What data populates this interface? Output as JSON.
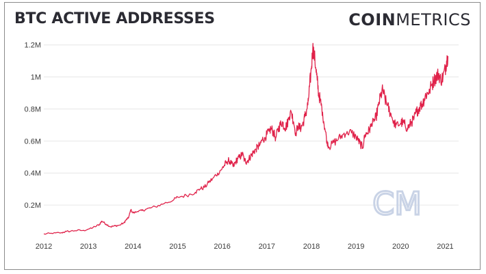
{
  "header": {
    "title": "BTC ACTIVE ADDRESSES",
    "brand_bold": "COIN",
    "brand_light": "METRICS"
  },
  "watermark": {
    "text": "CM",
    "color": "#c9d3e6"
  },
  "colors": {
    "line": "#e0224a",
    "grid": "#e6e6e6",
    "text": "#3a3a3a"
  },
  "chart_data": {
    "type": "line",
    "title": "BTC ACTIVE ADDRESSES",
    "xlabel": "",
    "ylabel": "",
    "xlim": [
      2012.0,
      2021.3
    ],
    "ylim": [
      0,
      1250000
    ],
    "grid": "horizontal",
    "x_ticks": [
      {
        "value": 2012,
        "label": "2012"
      },
      {
        "value": 2013,
        "label": "2013"
      },
      {
        "value": 2014,
        "label": "2014"
      },
      {
        "value": 2015,
        "label": "2015"
      },
      {
        "value": 2016,
        "label": "2016"
      },
      {
        "value": 2017,
        "label": "2017"
      },
      {
        "value": 2018,
        "label": "2018"
      },
      {
        "value": 2019,
        "label": "2019"
      },
      {
        "value": 2020,
        "label": "2020"
      },
      {
        "value": 2021,
        "label": "2021"
      }
    ],
    "y_ticks": [
      {
        "value": 200000,
        "label": "0.2M"
      },
      {
        "value": 400000,
        "label": "0.4M"
      },
      {
        "value": 600000,
        "label": "0.6M"
      },
      {
        "value": 800000,
        "label": "0.8M"
      },
      {
        "value": 1000000,
        "label": "1M"
      },
      {
        "value": 1200000,
        "label": "1.2M"
      }
    ],
    "series": [
      {
        "color": "#e0224a",
        "x": [
          2012.0,
          2012.2,
          2012.4,
          2012.5,
          2012.7,
          2012.9,
          2013.0,
          2013.15,
          2013.25,
          2013.3,
          2013.4,
          2013.5,
          2013.6,
          2013.7,
          2013.8,
          2013.85,
          2013.9,
          2013.95,
          2014.0,
          2014.1,
          2014.2,
          2014.3,
          2014.5,
          2014.7,
          2014.9,
          2015.0,
          2015.2,
          2015.4,
          2015.5,
          2015.6,
          2015.7,
          2015.8,
          2015.9,
          2016.0,
          2016.05,
          2016.1,
          2016.15,
          2016.2,
          2016.25,
          2016.3,
          2016.35,
          2016.4,
          2016.45,
          2016.5,
          2016.55,
          2016.6,
          2016.65,
          2016.7,
          2016.75,
          2016.8,
          2016.85,
          2016.9,
          2016.95,
          2017.0,
          2017.05,
          2017.1,
          2017.15,
          2017.2,
          2017.25,
          2017.3,
          2017.35,
          2017.4,
          2017.45,
          2017.5,
          2017.55,
          2017.6,
          2017.65,
          2017.7,
          2017.75,
          2017.8,
          2017.85,
          2017.9,
          2017.93,
          2017.96,
          2018.0,
          2018.03,
          2018.06,
          2018.1,
          2018.13,
          2018.16,
          2018.2,
          2018.25,
          2018.3,
          2018.35,
          2018.4,
          2018.5,
          2018.6,
          2018.7,
          2018.8,
          2018.9,
          2019.0,
          2019.05,
          2019.1,
          2019.15,
          2019.2,
          2019.25,
          2019.3,
          2019.35,
          2019.4,
          2019.45,
          2019.5,
          2019.55,
          2019.6,
          2019.65,
          2019.7,
          2019.75,
          2019.8,
          2019.85,
          2019.9,
          2020.0,
          2020.05,
          2020.1,
          2020.15,
          2020.2,
          2020.25,
          2020.3,
          2020.35,
          2020.4,
          2020.45,
          2020.5,
          2020.55,
          2020.6,
          2020.65,
          2020.7,
          2020.75,
          2020.8,
          2020.85,
          2020.9,
          2020.95,
          2021.0,
          2021.03,
          2021.06
        ],
        "y": [
          20000,
          22000,
          28000,
          35000,
          40000,
          42000,
          50000,
          65000,
          80000,
          100000,
          80000,
          65000,
          70000,
          75000,
          90000,
          110000,
          120000,
          170000,
          150000,
          160000,
          165000,
          175000,
          190000,
          210000,
          230000,
          250000,
          260000,
          280000,
          300000,
          310000,
          340000,
          370000,
          400000,
          430000,
          450000,
          470000,
          480000,
          460000,
          440000,
          470000,
          490000,
          500000,
          520000,
          480000,
          470000,
          490000,
          510000,
          530000,
          550000,
          560000,
          580000,
          610000,
          620000,
          640000,
          660000,
          680000,
          650000,
          620000,
          670000,
          700000,
          720000,
          680000,
          700000,
          750000,
          780000,
          720000,
          650000,
          690000,
          680000,
          700000,
          750000,
          800000,
          850000,
          950000,
          1050000,
          1180000,
          1150000,
          1050000,
          980000,
          900000,
          850000,
          780000,
          680000,
          600000,
          560000,
          590000,
          610000,
          640000,
          660000,
          650000,
          630000,
          600000,
          580000,
          560000,
          640000,
          650000,
          670000,
          700000,
          720000,
          750000,
          820000,
          880000,
          920000,
          860000,
          820000,
          790000,
          750000,
          720000,
          700000,
          710000,
          720000,
          700000,
          680000,
          700000,
          720000,
          740000,
          780000,
          800000,
          820000,
          840000,
          880000,
          900000,
          920000,
          950000,
          980000,
          1000000,
          1020000,
          980000,
          1000000,
          1050000,
          1100000,
          1130000
        ]
      }
    ]
  }
}
